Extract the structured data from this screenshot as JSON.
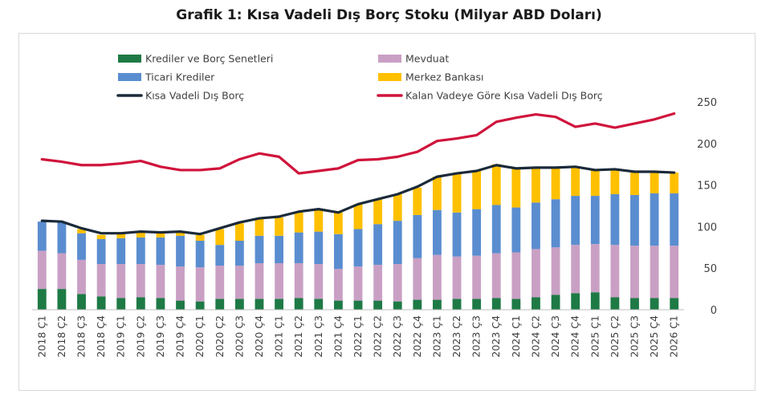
{
  "chart_data": {
    "type": "bar",
    "title": "Grafik 1: Kısa Vadeli Dış Borç Stoku (Milyar ABD Doları)",
    "ylim": [
      0,
      250
    ],
    "yticks": [
      0,
      50,
      100,
      150,
      200,
      250
    ],
    "stacked": true,
    "legend_position": "top",
    "grid": false,
    "categories": [
      "2018 Ç1",
      "2018 Ç2",
      "2018 Ç3",
      "2018 Ç4",
      "2019 Ç1",
      "2019 Ç2",
      "2019 Ç3",
      "2019 Ç4",
      "2020 Ç1",
      "2020 Ç2",
      "2020 Ç3",
      "2020 Ç4",
      "2021 Ç1",
      "2021 Ç2",
      "2021 Ç3",
      "2021 Ç4",
      "2022 Ç1",
      "2022 Ç2",
      "2022 Ç3",
      "2022 Ç4",
      "2023 Ç1",
      "2023 Ç2",
      "2023 Ç3",
      "2023 Ç4",
      "2024 Ç1",
      "2024 Ç2",
      "2024 Ç3",
      "2024 Ç4",
      "2025 Ç1",
      "2025 Ç2",
      "2025 Ç3",
      "2025 Ç4",
      "2026 Ç1"
    ],
    "series": [
      {
        "name": "Krediler ve Borç Senetleri",
        "kind": "bar",
        "color": "#1e7a45",
        "values": [
          25,
          25,
          19,
          16,
          14,
          15,
          14,
          11,
          10,
          13,
          13,
          13,
          13,
          14,
          13,
          11,
          11,
          11,
          10,
          12,
          12,
          13,
          13,
          14,
          13,
          15,
          18,
          20,
          21,
          15,
          14,
          14,
          14
        ]
      },
      {
        "name": "Mevduat",
        "kind": "bar",
        "color": "#c9a0c4",
        "values": [
          46,
          43,
          41,
          39,
          41,
          40,
          40,
          41,
          41,
          40,
          40,
          43,
          43,
          42,
          42,
          38,
          41,
          43,
          45,
          50,
          54,
          51,
          52,
          54,
          56,
          58,
          57,
          58,
          58,
          63,
          63,
          63,
          63
        ]
      },
      {
        "name": "Ticari Krediler",
        "kind": "bar",
        "color": "#5a8dd0",
        "values": [
          35,
          37,
          32,
          30,
          31,
          32,
          33,
          37,
          32,
          25,
          30,
          33,
          33,
          37,
          39,
          42,
          45,
          49,
          52,
          52,
          54,
          53,
          56,
          58,
          54,
          56,
          58,
          59,
          58,
          61,
          61,
          63,
          63
        ]
      },
      {
        "name": "Merkez Bankası",
        "kind": "bar",
        "color": "#ffc000",
        "values": [
          0,
          0,
          5,
          5,
          5,
          6,
          6,
          6,
          7,
          19,
          21,
          20,
          22,
          24,
          27,
          26,
          30,
          30,
          32,
          33,
          40,
          46,
          46,
          49,
          47,
          42,
          38,
          34,
          31,
          30,
          28,
          26,
          25
        ]
      },
      {
        "name": "Kısa Vadeli Dış Borç",
        "kind": "line",
        "color": "#1b2a3a",
        "values": [
          107,
          106,
          98,
          92,
          92,
          94,
          93,
          94,
          91,
          98,
          105,
          110,
          112,
          118,
          121,
          117,
          127,
          133,
          139,
          148,
          160,
          164,
          167,
          174,
          170,
          171,
          171,
          172,
          168,
          169,
          166,
          166,
          165
        ]
      },
      {
        "name": "Kalan Vadeye Göre Kısa Vadeli Dış Borç",
        "kind": "line",
        "color": "#d0143c",
        "values": [
          181,
          178,
          174,
          174,
          176,
          179,
          172,
          168,
          168,
          170,
          181,
          188,
          184,
          164,
          167,
          170,
          180,
          181,
          184,
          190,
          203,
          206,
          210,
          226,
          231,
          235,
          232,
          220,
          224,
          219,
          224,
          229,
          236
        ]
      }
    ]
  }
}
